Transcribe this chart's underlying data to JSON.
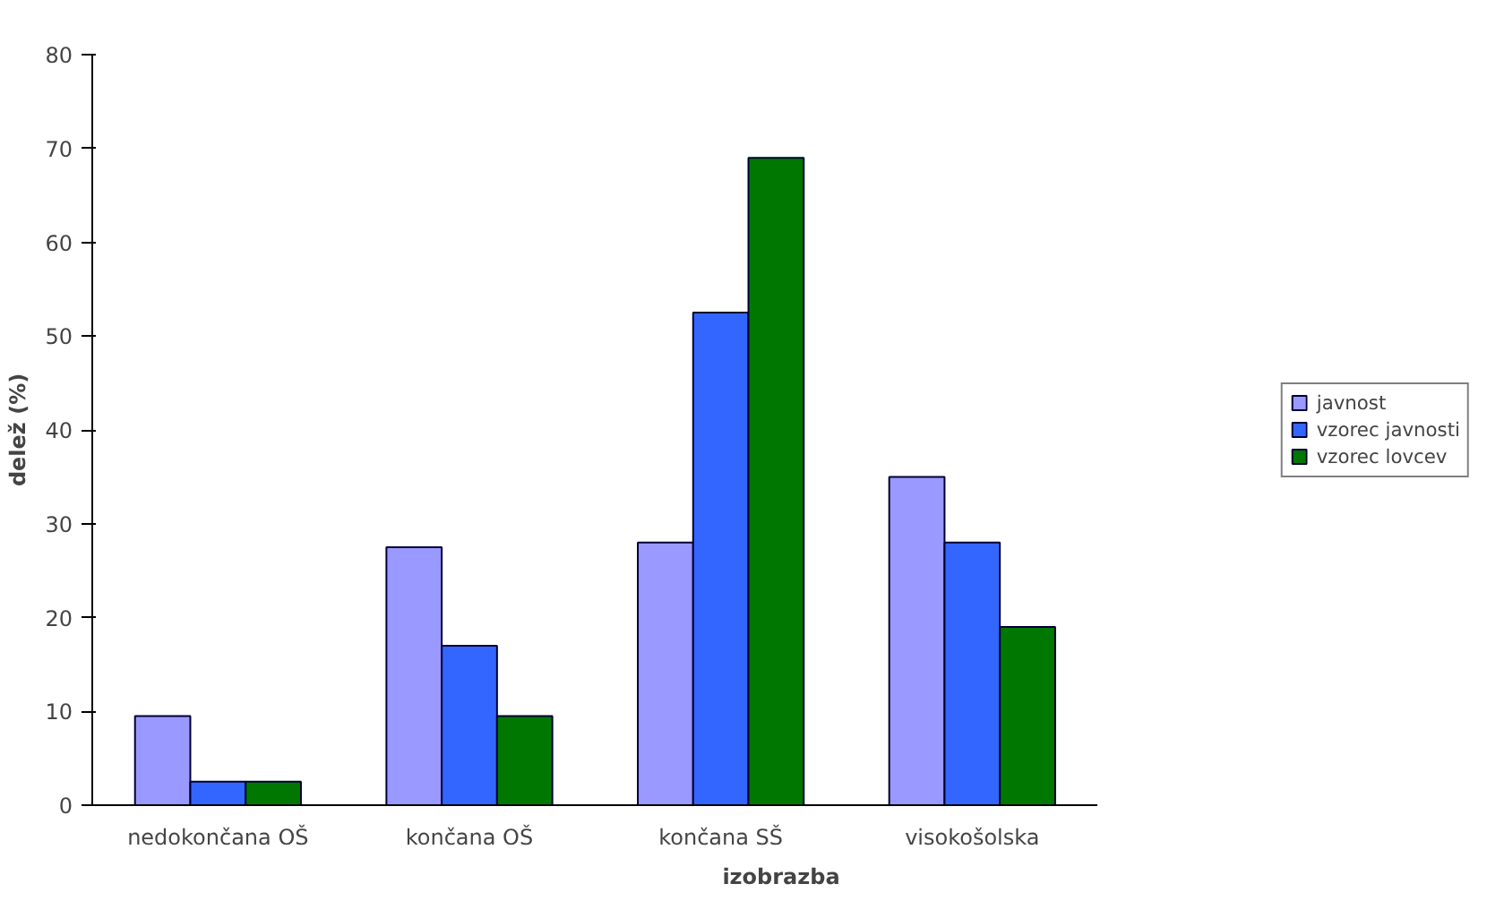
{
  "chart_data": {
    "type": "bar",
    "xlabel": "izobrazba",
    "ylabel": "delež (%)",
    "categories": [
      "nedokončana OŠ",
      "končana OŠ",
      "končana SŠ",
      "visokošolska"
    ],
    "series": [
      {
        "name": "javnost",
        "color": "#9999ff",
        "values": [
          9.5,
          27.5,
          28,
          35
        ]
      },
      {
        "name": "vzorec javnosti",
        "color": "#3366ff",
        "values": [
          2.5,
          17,
          52.5,
          28
        ]
      },
      {
        "name": "vzorec lovcev",
        "color": "#007700",
        "values": [
          2.5,
          9.5,
          69,
          19
        ]
      }
    ],
    "ylim": [
      0,
      80
    ],
    "yticks": [
      0,
      10,
      20,
      30,
      40,
      50,
      60,
      70,
      80
    ],
    "grid": false,
    "legend": "right"
  }
}
